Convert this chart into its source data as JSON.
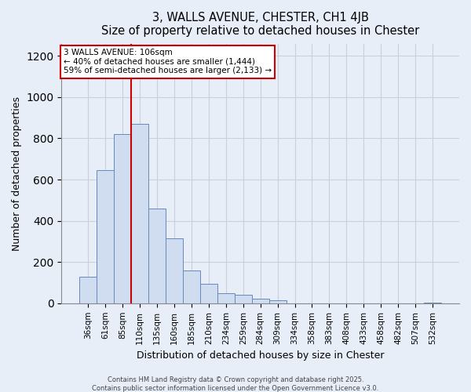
{
  "title": "3, WALLS AVENUE, CHESTER, CH1 4JB",
  "subtitle": "Size of property relative to detached houses in Chester",
  "xlabel": "Distribution of detached houses by size in Chester",
  "ylabel": "Number of detached properties",
  "bar_labels": [
    "36sqm",
    "61sqm",
    "85sqm",
    "110sqm",
    "135sqm",
    "160sqm",
    "185sqm",
    "210sqm",
    "234sqm",
    "259sqm",
    "284sqm",
    "309sqm",
    "334sqm",
    "358sqm",
    "383sqm",
    "408sqm",
    "433sqm",
    "458sqm",
    "482sqm",
    "507sqm",
    "532sqm"
  ],
  "bar_values": [
    130,
    645,
    820,
    870,
    460,
    315,
    158,
    93,
    50,
    40,
    22,
    15,
    0,
    0,
    0,
    0,
    0,
    0,
    0,
    0,
    3
  ],
  "bar_color": "#d0ddf0",
  "bar_edge_color": "#6688bb",
  "vline_color": "#cc0000",
  "ylim": [
    0,
    1260
  ],
  "yticks": [
    0,
    200,
    400,
    600,
    800,
    1000,
    1200
  ],
  "annotation_title": "3 WALLS AVENUE: 106sqm",
  "annotation_line1": "← 40% of detached houses are smaller (1,444)",
  "annotation_line2": "59% of semi-detached houses are larger (2,133) →",
  "annotation_box_color": "#ffffff",
  "annotation_box_edge": "#cc0000",
  "background_color": "#e8eef8",
  "grid_color": "#c8d0e0",
  "footer1": "Contains HM Land Registry data © Crown copyright and database right 2025.",
  "footer2": "Contains public sector information licensed under the Open Government Licence v3.0."
}
